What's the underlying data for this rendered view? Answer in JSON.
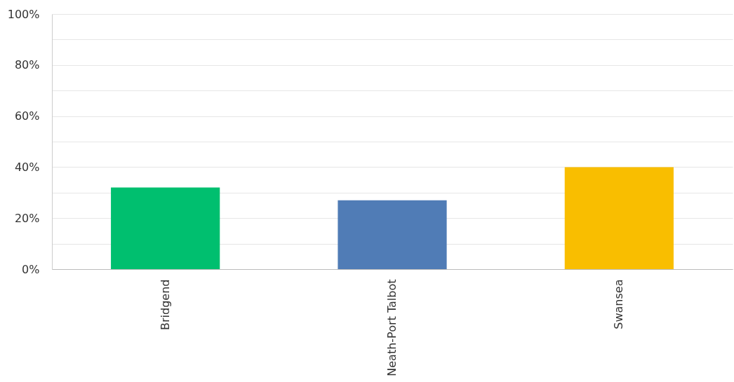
{
  "chart_data": {
    "type": "bar",
    "categories": [
      "Bridgend",
      "Neath-Port Talbot",
      "Swansea"
    ],
    "values": [
      32,
      27,
      40
    ],
    "colors": [
      "#00bf6f",
      "#507cb6",
      "#f9be00"
    ],
    "ylim": [
      0,
      100
    ],
    "yticks": [
      {
        "value": 0,
        "label": "0%"
      },
      {
        "value": 10,
        "label": null
      },
      {
        "value": 20,
        "label": "20%"
      },
      {
        "value": 30,
        "label": null
      },
      {
        "value": 40,
        "label": "40%"
      },
      {
        "value": 50,
        "label": null
      },
      {
        "value": 60,
        "label": "60%"
      },
      {
        "value": 70,
        "label": null
      },
      {
        "value": 80,
        "label": "80%"
      },
      {
        "value": 90,
        "label": null
      },
      {
        "value": 100,
        "label": "100%"
      }
    ],
    "grid": "y"
  }
}
